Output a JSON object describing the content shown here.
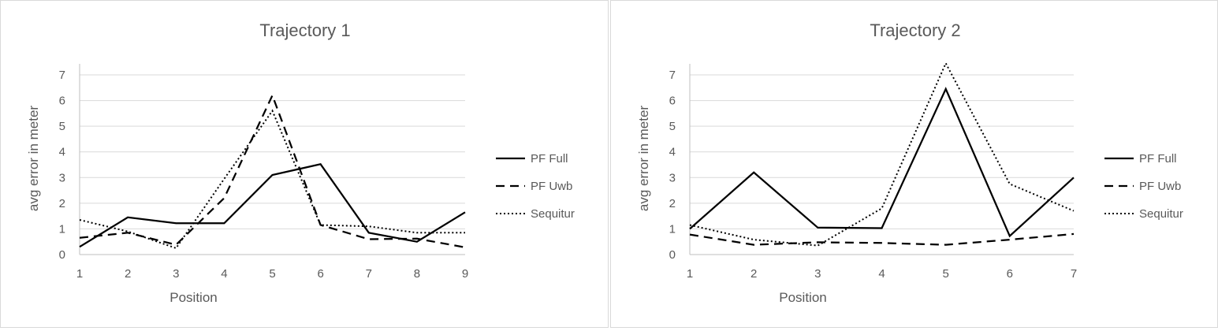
{
  "chart_data": [
    {
      "type": "line",
      "title": "Trajectory 1",
      "xlabel": "Position",
      "ylabel": "avg error in meter",
      "x": [
        1,
        2,
        3,
        4,
        5,
        6,
        7,
        8,
        9
      ],
      "ylim": [
        0,
        7
      ],
      "yticks": [
        0,
        1,
        2,
        3,
        4,
        5,
        6,
        7
      ],
      "grid": true,
      "legend": "right",
      "series": [
        {
          "name": "PF Full",
          "style": "solid",
          "values": [
            0.3,
            1.45,
            1.22,
            1.22,
            3.1,
            3.52,
            0.85,
            0.5,
            1.65
          ]
        },
        {
          "name": "PF Uwb",
          "style": "dashed",
          "values": [
            0.65,
            0.85,
            0.38,
            2.2,
            6.2,
            1.15,
            0.6,
            0.62,
            0.28
          ]
        },
        {
          "name": "Sequitur",
          "style": "dotted",
          "values": [
            1.35,
            0.9,
            0.25,
            2.95,
            5.6,
            1.15,
            1.1,
            0.85,
            0.85
          ]
        }
      ]
    },
    {
      "type": "line",
      "title": "Trajectory 2",
      "xlabel": "Position",
      "ylabel": "avg error in meter",
      "x": [
        1,
        2,
        3,
        4,
        5,
        6,
        7
      ],
      "ylim": [
        0,
        7
      ],
      "yticks": [
        0,
        1,
        2,
        3,
        4,
        5,
        6,
        7
      ],
      "grid": true,
      "legend": "right",
      "series": [
        {
          "name": "PF Full",
          "style": "solid",
          "values": [
            1.0,
            3.2,
            1.05,
            1.03,
            6.45,
            0.72,
            3.0
          ]
        },
        {
          "name": "PF Uwb",
          "style": "dashed",
          "values": [
            0.78,
            0.38,
            0.48,
            0.45,
            0.38,
            0.58,
            0.8
          ]
        },
        {
          "name": "Sequitur",
          "style": "dotted",
          "values": [
            1.15,
            0.58,
            0.35,
            1.8,
            7.45,
            2.75,
            1.7
          ]
        }
      ]
    }
  ]
}
